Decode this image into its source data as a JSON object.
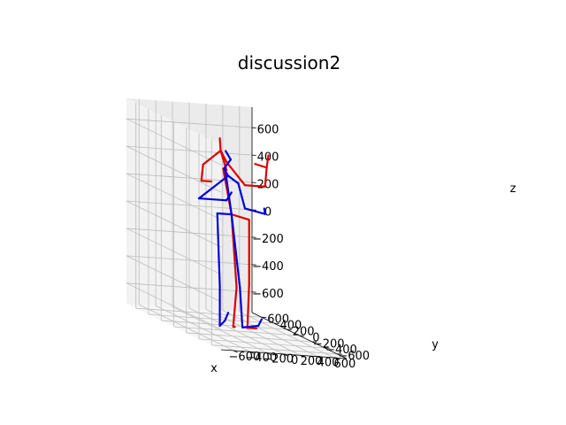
{
  "chart_data": {
    "type": "line3d",
    "title": "discussion2",
    "xlabel": "x",
    "ylabel": "y",
    "zlabel": "z",
    "xlim": [
      -750,
      750
    ],
    "ylim": [
      -750,
      750
    ],
    "zlim": [
      -750,
      750
    ],
    "x_ticks": [
      "−600",
      "−400",
      "−200",
      "0",
      "200",
      "400",
      "600"
    ],
    "y_ticks": [
      "−600",
      "−400",
      "−200",
      "0",
      "200",
      "400",
      "600"
    ],
    "z_ticks": [
      "−600",
      "−400",
      "−200",
      "0",
      "200",
      "400",
      "600"
    ],
    "grid": true,
    "series": [
      {
        "color": "#dd0000",
        "segments": [
          [
            [
              -120,
              0,
              420
            ],
            [
              -160,
              0,
              500
            ]
          ],
          [
            [
              -160,
              0,
              500
            ],
            [
              -190,
              0,
              560
            ]
          ],
          [
            [
              -190,
              0,
              560
            ],
            [
              -200,
              0,
              650
            ]
          ],
          [
            [
              -190,
              0,
              560
            ],
            [
              -400,
              0,
              450
            ]
          ],
          [
            [
              -400,
              0,
              450
            ],
            [
              -420,
              0,
              330
            ]
          ],
          [
            [
              -420,
              0,
              330
            ],
            [
              -300,
              0,
              330
            ]
          ],
          [
            [
              -190,
              0,
              560
            ],
            [
              -120,
              0,
              480
            ]
          ],
          [
            [
              -120,
              0,
              480
            ],
            [
              100,
              0,
              320
            ]
          ],
          [
            [
              100,
              0,
              320
            ],
            [
              340,
              0,
              320
            ]
          ],
          [
            [
              340,
              0,
              320
            ],
            [
              360,
              0,
              460
            ]
          ],
          [
            [
              360,
              0,
              460
            ],
            [
              380,
              0,
              550
            ]
          ],
          [
            [
              360,
              0,
              460
            ],
            [
              220,
              0,
              480
            ]
          ],
          [
            [
              -160,
              0,
              430
            ],
            [
              -60,
              0,
              100
            ]
          ],
          [
            [
              -60,
              0,
              100
            ],
            [
              150,
              0,
              70
            ]
          ],
          [
            [
              -60,
              0,
              100
            ],
            [
              0,
              0,
              -430
            ]
          ],
          [
            [
              0,
              0,
              -430
            ],
            [
              -40,
              0,
              -720
            ]
          ],
          [
            [
              -40,
              0,
              -720
            ],
            [
              -20,
              0,
              -720
            ]
          ],
          [
            [
              150,
              0,
              70
            ],
            [
              150,
              0,
              -400
            ]
          ],
          [
            [
              150,
              0,
              -400
            ],
            [
              130,
              0,
              -720
            ]
          ],
          [
            [
              130,
              0,
              -720
            ],
            [
              240,
              0,
              -720
            ]
          ]
        ]
      },
      {
        "color": "#0000dd",
        "segments": [
          [
            [
              -130,
              0,
              560
            ],
            [
              -70,
              0,
              500
            ]
          ],
          [
            [
              -70,
              0,
              500
            ],
            [
              -150,
              0,
              430
            ]
          ],
          [
            [
              -150,
              0,
              430
            ],
            [
              -100,
              0,
              380
            ]
          ],
          [
            [
              -100,
              0,
              380
            ],
            [
              -450,
              0,
              200
            ]
          ],
          [
            [
              -450,
              0,
              200
            ],
            [
              -120,
              0,
              200
            ]
          ],
          [
            [
              -120,
              0,
              200
            ],
            [
              -60,
              0,
              260
            ]
          ],
          [
            [
              -100,
              0,
              380
            ],
            [
              20,
              0,
              330
            ]
          ],
          [
            [
              20,
              0,
              330
            ],
            [
              100,
              0,
              150
            ]
          ],
          [
            [
              100,
              0,
              150
            ],
            [
              340,
              0,
              120
            ]
          ],
          [
            [
              340,
              0,
              120
            ],
            [
              330,
              0,
              160
            ]
          ],
          [
            [
              -140,
              0,
              440
            ],
            [
              -60,
              0,
              100
            ]
          ],
          [
            [
              -60,
              0,
              100
            ],
            [
              -230,
              0,
              100
            ]
          ],
          [
            [
              -230,
              0,
              100
            ],
            [
              -200,
              0,
              -430
            ]
          ],
          [
            [
              -200,
              0,
              -430
            ],
            [
              -200,
              0,
              -720
            ]
          ],
          [
            [
              -200,
              0,
              -720
            ],
            [
              -140,
              0,
              -680
            ]
          ],
          [
            [
              -140,
              0,
              -680
            ],
            [
              -100,
              0,
              -620
            ]
          ],
          [
            [
              -60,
              0,
              100
            ],
            [
              40,
              0,
              -430
            ]
          ],
          [
            [
              40,
              0,
              -430
            ],
            [
              70,
              0,
              -720
            ]
          ],
          [
            [
              70,
              0,
              -720
            ],
            [
              260,
              0,
              -700
            ]
          ],
          [
            [
              260,
              0,
              -700
            ],
            [
              300,
              0,
              -650
            ]
          ]
        ]
      }
    ]
  }
}
